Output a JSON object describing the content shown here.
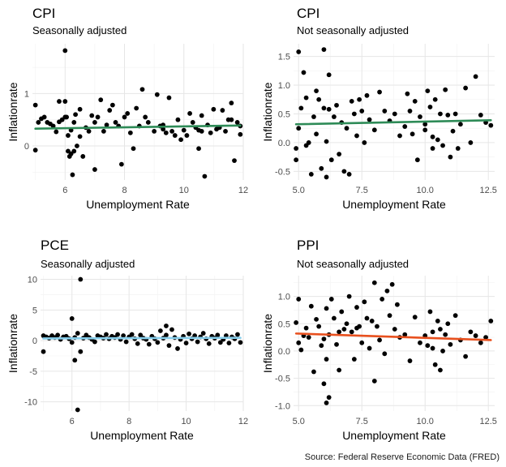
{
  "caption": "Source: Federal Reserve Economic Data (FRED)",
  "chart_data": [
    {
      "type": "scatter",
      "title": "CPI",
      "subtitle": "Seasonally adjusted",
      "xlabel": "Unemployment Rate",
      "ylabel": "Inflationrate",
      "xlim": [
        4.9,
        12.0
      ],
      "ylim": [
        -0.65,
        1.95
      ],
      "xticks": [
        6,
        8,
        10,
        12
      ],
      "yticks": [
        0,
        1
      ],
      "grid": true,
      "fit_color": "#2e8b57",
      "fit_line": {
        "x": [
          5.0,
          11.9
        ],
        "y": [
          0.33,
          0.39
        ]
      },
      "points": {
        "x": [
          5.0,
          5.0,
          5.1,
          5.2,
          5.3,
          5.4,
          5.5,
          5.6,
          5.7,
          5.8,
          5.9,
          6.0,
          6.0,
          6.05,
          6.1,
          6.1,
          6.15,
          6.2,
          6.2,
          6.25,
          6.3,
          6.3,
          6.35,
          6.4,
          6.5,
          6.5,
          6.6,
          6.7,
          6.8,
          6.9,
          7.0,
          7.0,
          7.1,
          7.2,
          7.3,
          7.4,
          7.5,
          7.6,
          7.7,
          7.8,
          7.9,
          8.0,
          8.1,
          8.2,
          8.3,
          8.4,
          8.5,
          8.6,
          8.7,
          8.8,
          9.0,
          9.1,
          9.2,
          9.3,
          9.4,
          9.5,
          9.6,
          9.7,
          9.8,
          9.9,
          10.0,
          10.1,
          10.2,
          10.3,
          10.4,
          10.5,
          10.6,
          10.6,
          10.7,
          10.8,
          10.9,
          11.0,
          11.1,
          11.2,
          11.3,
          11.4,
          11.5,
          11.6,
          11.7,
          11.8,
          11.9,
          11.9,
          6.0,
          5.8,
          9.3,
          10.5,
          11.6
        ],
        "y": [
          0.78,
          -0.08,
          0.45,
          0.52,
          0.55,
          0.45,
          0.42,
          0.38,
          0.27,
          0.46,
          0.5,
          1.82,
          0.85,
          0.55,
          0.2,
          -0.1,
          -0.2,
          -0.15,
          0.3,
          -0.55,
          0.45,
          -0.1,
          0.6,
          0.0,
          0.18,
          0.7,
          -0.2,
          0.35,
          0.28,
          0.58,
          -0.45,
          0.45,
          0.55,
          0.88,
          0.28,
          0.4,
          0.68,
          0.78,
          0.45,
          0.38,
          -0.35,
          0.55,
          0.62,
          0.25,
          -0.05,
          0.72,
          0.38,
          1.08,
          0.55,
          0.45,
          0.28,
          0.98,
          0.38,
          0.32,
          0.25,
          0.92,
          0.28,
          0.2,
          0.5,
          0.12,
          0.3,
          0.2,
          0.62,
          0.45,
          0.35,
          -0.05,
          0.28,
          0.58,
          -0.58,
          0.4,
          0.25,
          0.7,
          0.32,
          0.35,
          0.68,
          0.28,
          0.5,
          0.82,
          -0.28,
          0.45,
          0.38,
          0.22,
          0.55,
          0.85,
          0.4,
          0.3,
          0.5
        ]
      }
    },
    {
      "type": "scatter",
      "title": "CPI",
      "subtitle": "Not seasonally adjusted",
      "xlabel": "Unemployment Rate",
      "ylabel": "Inflationrate",
      "xlim": [
        4.8,
        12.75
      ],
      "ylim": [
        -0.65,
        1.72
      ],
      "xticks": [
        5.0,
        7.5,
        10.0,
        12.5
      ],
      "xtick_labels": [
        "5.0",
        "7.5",
        "10.0",
        "12.5"
      ],
      "yticks": [
        -0.5,
        0.0,
        0.5,
        1.0,
        1.5
      ],
      "ytick_labels": [
        "-0.5",
        "0.0",
        "0.5",
        "1.0",
        "1.5"
      ],
      "grid": true,
      "fit_color": "#2e8b57",
      "fit_line": {
        "x": [
          4.9,
          12.6
        ],
        "y": [
          0.32,
          0.39
        ]
      },
      "points": {
        "x": [
          4.9,
          4.9,
          5.0,
          5.0,
          5.1,
          5.2,
          5.3,
          5.4,
          5.5,
          5.6,
          5.7,
          5.8,
          5.9,
          6.0,
          6.0,
          6.1,
          6.1,
          6.2,
          6.3,
          6.4,
          6.5,
          6.6,
          6.7,
          6.8,
          6.9,
          7.0,
          7.1,
          7.2,
          7.3,
          7.4,
          7.5,
          7.6,
          7.7,
          7.8,
          8.0,
          8.2,
          8.4,
          8.6,
          8.8,
          9.0,
          9.2,
          9.3,
          9.4,
          9.5,
          9.6,
          9.8,
          10.0,
          10.1,
          10.2,
          10.3,
          10.4,
          10.5,
          10.6,
          10.7,
          10.8,
          10.9,
          11.0,
          11.2,
          11.4,
          11.6,
          11.8,
          12.0,
          12.2,
          12.4,
          12.6,
          5.3,
          5.7,
          6.2,
          9.7,
          10.0,
          10.3,
          11.1,
          11.3
        ],
        "y": [
          -0.1,
          -0.3,
          1.58,
          0.25,
          0.6,
          1.22,
          0.78,
          0.0,
          -0.55,
          0.45,
          0.15,
          0.75,
          -0.45,
          1.62,
          0.6,
          -0.6,
          0.02,
          1.18,
          -0.3,
          0.45,
          0.65,
          -0.2,
          0.35,
          -0.5,
          0.25,
          -0.55,
          0.72,
          0.5,
          0.12,
          0.75,
          0.55,
          0.0,
          0.82,
          0.4,
          0.22,
          0.88,
          0.55,
          0.38,
          0.5,
          0.12,
          0.28,
          0.85,
          0.55,
          0.15,
          0.72,
          0.45,
          0.32,
          0.9,
          0.62,
          -0.1,
          0.75,
          0.05,
          0.5,
          -0.05,
          0.92,
          0.48,
          -0.25,
          0.5,
          0.32,
          0.95,
          0.0,
          1.15,
          0.48,
          0.35,
          0.3,
          -0.05,
          0.9,
          0.58,
          -0.3,
          0.22,
          0.1,
          0.2,
          -0.1
        ]
      }
    },
    {
      "type": "scatter",
      "title": "PCE",
      "subtitle": "Seasonally adjusted",
      "xlabel": "Unemployment Rate",
      "ylabel": "Inflationrate",
      "xlim": [
        4.9,
        12.0
      ],
      "ylim": [
        -11.5,
        10.6
      ],
      "xticks": [
        6,
        8,
        10,
        12
      ],
      "yticks": [
        -10,
        -5,
        0,
        5,
        10
      ],
      "grid": true,
      "fit_color": "#87ceeb",
      "fit_line": {
        "x": [
          5.0,
          11.9
        ],
        "y": [
          0.35,
          0.45
        ]
      },
      "points": {
        "x": [
          5.0,
          5.0,
          5.1,
          5.2,
          5.3,
          5.4,
          5.5,
          5.6,
          5.7,
          5.8,
          5.9,
          6.0,
          6.0,
          6.1,
          6.1,
          6.2,
          6.2,
          6.3,
          6.3,
          6.4,
          6.5,
          6.6,
          6.7,
          6.8,
          6.9,
          7.0,
          7.1,
          7.2,
          7.3,
          7.4,
          7.5,
          7.6,
          7.7,
          7.8,
          7.9,
          8.0,
          8.1,
          8.2,
          8.3,
          8.4,
          8.5,
          8.6,
          8.7,
          8.8,
          8.9,
          9.0,
          9.1,
          9.2,
          9.3,
          9.3,
          9.4,
          9.5,
          9.6,
          9.7,
          9.8,
          9.9,
          10.0,
          10.1,
          10.2,
          10.3,
          10.4,
          10.5,
          10.6,
          10.7,
          10.8,
          10.9,
          11.0,
          11.1,
          11.2,
          11.3,
          11.4,
          11.5,
          11.6,
          11.7,
          11.8,
          11.9
        ],
        "y": [
          0.8,
          -1.8,
          0.6,
          0.4,
          0.8,
          0.5,
          0.9,
          0.2,
          0.6,
          0.7,
          0.3,
          -0.3,
          3.6,
          -3.2,
          0.5,
          -11.3,
          1.2,
          10.0,
          -1.8,
          0.4,
          0.9,
          0.5,
          0.2,
          -0.2,
          0.8,
          0.6,
          0.4,
          1.0,
          0.3,
          0.7,
          0.5,
          1.0,
          0.2,
          0.8,
          -0.2,
          0.6,
          1.0,
          0.3,
          -0.5,
          0.9,
          0.4,
          0.2,
          -0.6,
          0.7,
          0.3,
          -0.3,
          1.6,
          0.4,
          0.9,
          2.4,
          -0.8,
          1.8,
          0.5,
          -1.3,
          0.2,
          0.7,
          -0.4,
          1.1,
          0.3,
          0.8,
          -0.2,
          0.6,
          1.2,
          0.3,
          -0.5,
          0.7,
          0.4,
          0.9,
          -0.3,
          0.2,
          0.8,
          -0.4,
          0.6,
          0.3,
          1.0,
          -0.3
        ]
      }
    },
    {
      "type": "scatter",
      "title": "PPI",
      "subtitle": "Not seasonally adjusted",
      "xlabel": "Unemployment Rate",
      "ylabel": "Inflationrate",
      "xlim": [
        4.8,
        12.75
      ],
      "ylim": [
        -1.1,
        1.38
      ],
      "xticks": [
        5.0,
        7.5,
        10.0,
        12.5
      ],
      "xtick_labels": [
        "5.0",
        "7.5",
        "10.0",
        "12.5"
      ],
      "yticks": [
        -1.0,
        -0.5,
        0.0,
        0.5,
        1.0
      ],
      "ytick_labels": [
        "-1.0",
        "-0.5",
        "0.0",
        "0.5",
        "1.0"
      ],
      "grid": true,
      "fit_color": "#e8501e",
      "fit_line": {
        "x": [
          4.9,
          12.6
        ],
        "y": [
          0.32,
          0.2
        ]
      },
      "points": {
        "x": [
          4.9,
          5.0,
          5.0,
          5.1,
          5.2,
          5.3,
          5.4,
          5.5,
          5.6,
          5.7,
          5.8,
          5.9,
          6.0,
          6.0,
          6.1,
          6.1,
          6.2,
          6.2,
          6.3,
          6.4,
          6.5,
          6.6,
          6.7,
          6.8,
          6.9,
          7.0,
          7.1,
          7.2,
          7.3,
          7.4,
          7.5,
          7.6,
          7.7,
          7.8,
          7.9,
          8.0,
          8.1,
          8.2,
          8.3,
          8.4,
          8.5,
          8.6,
          8.7,
          8.8,
          8.9,
          9.0,
          9.2,
          9.4,
          9.6,
          9.8,
          10.0,
          10.1,
          10.2,
          10.3,
          10.4,
          10.5,
          10.6,
          10.7,
          10.8,
          10.9,
          11.0,
          11.2,
          11.4,
          11.6,
          11.8,
          12.0,
          12.2,
          12.4,
          12.6,
          6.1,
          6.6,
          7.3,
          8.0,
          10.3,
          10.6
        ],
        "y": [
          0.52,
          0.95,
          0.15,
          0.02,
          0.28,
          0.42,
          0.25,
          0.82,
          -0.38,
          0.58,
          0.45,
          0.1,
          0.22,
          -0.6,
          0.78,
          -0.15,
          0.3,
          -0.85,
          0.95,
          0.6,
          0.12,
          -0.35,
          0.72,
          0.4,
          0.5,
          1.0,
          0.35,
          -0.15,
          0.8,
          0.45,
          0.15,
          0.9,
          0.6,
          0.05,
          0.55,
          1.25,
          0.45,
          0.2,
          0.95,
          -0.05,
          1.1,
          0.65,
          1.22,
          0.4,
          0.85,
          0.25,
          0.3,
          -0.18,
          0.62,
          0.15,
          0.28,
          0.1,
          0.72,
          0.35,
          -0.25,
          0.55,
          0.4,
          0.0,
          0.3,
          0.5,
          0.12,
          0.65,
          0.2,
          -0.1,
          0.35,
          0.28,
          0.15,
          0.25,
          0.55,
          -0.95,
          0.35,
          0.42,
          -0.55,
          0.05,
          -0.35
        ]
      }
    }
  ]
}
